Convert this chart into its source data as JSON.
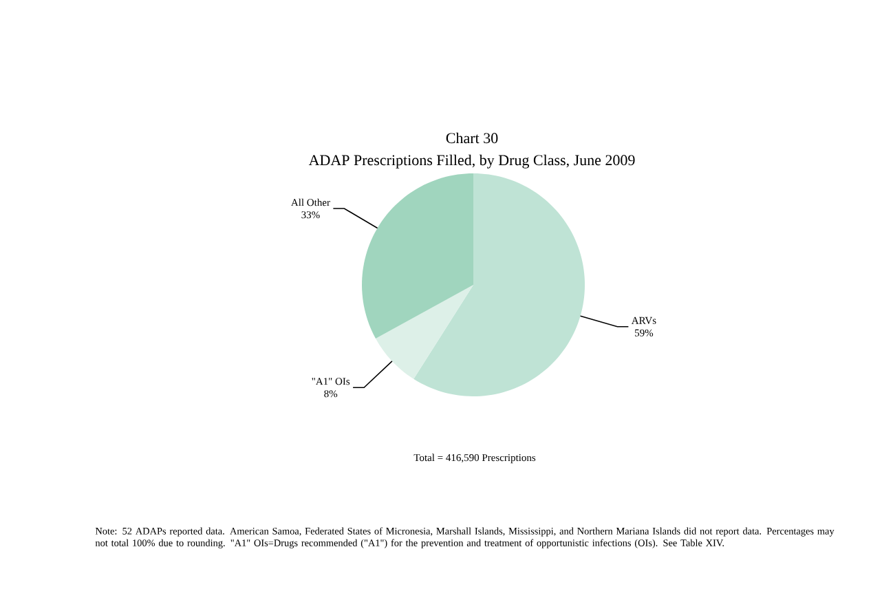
{
  "chart_data": {
    "type": "pie",
    "title": "Chart 30",
    "subtitle": "ADAP Prescriptions Filled, by Drug Class, June 2009",
    "categories": [
      "ARVs",
      "\"A1\" OIs",
      "All Other"
    ],
    "values": [
      59,
      8,
      33
    ],
    "value_labels": [
      "59%",
      "8%",
      "33%"
    ],
    "colors": [
      "#bfe3d5",
      "#ddf0e8",
      "#a0d5be"
    ],
    "annotations": [
      "Total = 416,590 Prescriptions",
      "Note:  52 ADAPs reported data.  American Samoa, Federated States of Micronesia, Marshall Islands, Mississippi, and Northern Mariana Islands did not report data. Percentages may not total 100% due to rounding.  \"A1\" OIs=Drugs recommended (\"A1\") for the prevention and treatment of opportunistic infections (OIs).  See Table XIV."
    ]
  }
}
